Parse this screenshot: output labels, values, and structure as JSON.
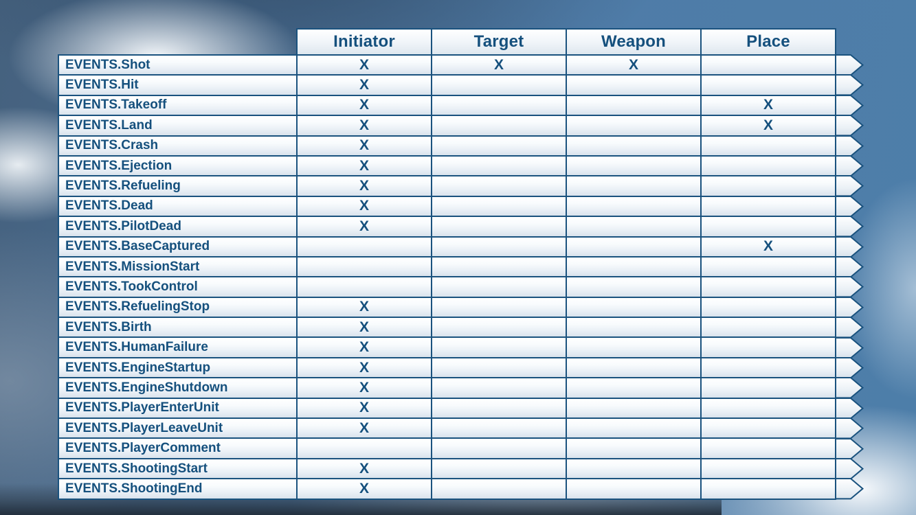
{
  "colors": {
    "line": "#1a527e",
    "text": "#15507d",
    "sky": "#4d7ea9"
  },
  "table": {
    "columns": [
      "Initiator",
      "Target",
      "Weapon",
      "Place"
    ],
    "rows": [
      {
        "label": "EVENTS.Shot",
        "marks": [
          "X",
          "X",
          "X",
          ""
        ]
      },
      {
        "label": "EVENTS.Hit",
        "marks": [
          "X",
          "",
          "",
          ""
        ]
      },
      {
        "label": "EVENTS.Takeoff",
        "marks": [
          "X",
          "",
          "",
          "X"
        ]
      },
      {
        "label": "EVENTS.Land",
        "marks": [
          "X",
          "",
          "",
          "X"
        ]
      },
      {
        "label": "EVENTS.Crash",
        "marks": [
          "X",
          "",
          "",
          ""
        ]
      },
      {
        "label": "EVENTS.Ejection",
        "marks": [
          "X",
          "",
          "",
          ""
        ]
      },
      {
        "label": "EVENTS.Refueling",
        "marks": [
          "X",
          "",
          "",
          ""
        ]
      },
      {
        "label": "EVENTS.Dead",
        "marks": [
          "X",
          "",
          "",
          ""
        ]
      },
      {
        "label": "EVENTS.PilotDead",
        "marks": [
          "X",
          "",
          "",
          ""
        ]
      },
      {
        "label": "EVENTS.BaseCaptured",
        "marks": [
          "",
          "",
          "",
          "X"
        ]
      },
      {
        "label": "EVENTS.MissionStart",
        "marks": [
          "",
          "",
          "",
          ""
        ]
      },
      {
        "label": "EVENTS.TookControl",
        "marks": [
          "",
          "",
          "",
          ""
        ]
      },
      {
        "label": "EVENTS.RefuelingStop",
        "marks": [
          "X",
          "",
          "",
          ""
        ]
      },
      {
        "label": "EVENTS.Birth",
        "marks": [
          "X",
          "",
          "",
          ""
        ]
      },
      {
        "label": "EVENTS.HumanFailure",
        "marks": [
          "X",
          "",
          "",
          ""
        ]
      },
      {
        "label": "EVENTS.EngineStartup",
        "marks": [
          "X",
          "",
          "",
          ""
        ]
      },
      {
        "label": "EVENTS.EngineShutdown",
        "marks": [
          "X",
          "",
          "",
          ""
        ]
      },
      {
        "label": "EVENTS.PlayerEnterUnit",
        "marks": [
          "X",
          "",
          "",
          ""
        ]
      },
      {
        "label": "EVENTS.PlayerLeaveUnit",
        "marks": [
          "X",
          "",
          "",
          ""
        ]
      },
      {
        "label": "EVENTS.PlayerComment",
        "marks": [
          "",
          "",
          "",
          ""
        ]
      },
      {
        "label": "EVENTS.ShootingStart",
        "marks": [
          "X",
          "",
          "",
          ""
        ]
      },
      {
        "label": "EVENTS.ShootingEnd",
        "marks": [
          "X",
          "",
          "",
          ""
        ]
      }
    ]
  }
}
